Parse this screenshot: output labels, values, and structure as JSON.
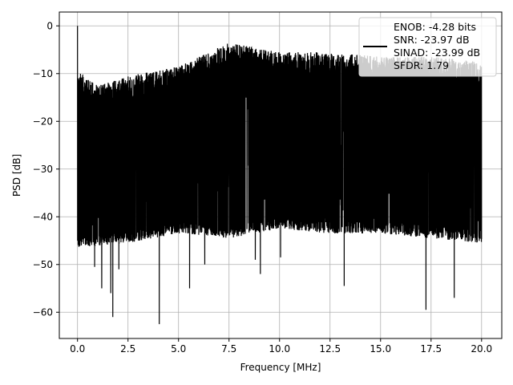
{
  "chart_data": {
    "type": "line",
    "xlabel": "Frequency [MHz]",
    "ylabel": "PSD [dB]",
    "xlim": [
      -0.9,
      21.0
    ],
    "ylim": [
      -65.5,
      2.9
    ],
    "xticks": [
      0.0,
      2.5,
      5.0,
      7.5,
      10.0,
      12.5,
      15.0,
      17.5,
      20.0
    ],
    "xtick_labels": [
      "0.0",
      "2.5",
      "5.0",
      "7.5",
      "10.0",
      "12.5",
      "15.0",
      "17.5",
      "20.0"
    ],
    "yticks": [
      0,
      -10,
      -20,
      -30,
      -40,
      -50,
      -60
    ],
    "ytick_labels": [
      "0",
      "−10",
      "−20",
      "−30",
      "−40",
      "−50",
      "−60"
    ],
    "grid": true,
    "legend_position": "top-right",
    "legend_entries": [
      "ENOB: -4.28 bits",
      "SNR: -23.97 dB",
      "SINAD: -23.99 dB",
      "SFDR: 1.79"
    ],
    "series": [
      {
        "color": "#000000",
        "x_start": 0.0,
        "x_end": 20.0,
        "peak": {
          "x": 0.0,
          "y": 0.0
        },
        "band_top": [
          {
            "x": 0.0,
            "y": -14
          },
          {
            "x": 1.0,
            "y": -17
          },
          {
            "x": 2.5,
            "y": -15
          },
          {
            "x": 5.0,
            "y": -13
          },
          {
            "x": 7.5,
            "y": -8
          },
          {
            "x": 10.0,
            "y": -10
          },
          {
            "x": 12.5,
            "y": -10
          },
          {
            "x": 15.0,
            "y": -11
          },
          {
            "x": 17.5,
            "y": -11
          },
          {
            "x": 20.0,
            "y": -12
          }
        ],
        "band_bottom": [
          {
            "x": 0.0,
            "y": -44
          },
          {
            "x": 2.5,
            "y": -43
          },
          {
            "x": 5.0,
            "y": -41
          },
          {
            "x": 7.5,
            "y": -42
          },
          {
            "x": 10.0,
            "y": -40
          },
          {
            "x": 12.5,
            "y": -41
          },
          {
            "x": 15.0,
            "y": -41
          },
          {
            "x": 17.5,
            "y": -42
          },
          {
            "x": 20.0,
            "y": -43
          }
        ],
        "dips": [
          {
            "x": 0.45,
            "y": -45
          },
          {
            "x": 0.6,
            "y": -43
          },
          {
            "x": 0.85,
            "y": -50.5
          },
          {
            "x": 1.0,
            "y": -44
          },
          {
            "x": 1.2,
            "y": -55
          },
          {
            "x": 1.65,
            "y": -56
          },
          {
            "x": 1.75,
            "y": -61
          },
          {
            "x": 2.05,
            "y": -51
          },
          {
            "x": 4.05,
            "y": -62.5
          },
          {
            "x": 5.55,
            "y": -55
          },
          {
            "x": 6.3,
            "y": -50
          },
          {
            "x": 7.35,
            "y": -44
          },
          {
            "x": 8.8,
            "y": -49
          },
          {
            "x": 9.05,
            "y": -52
          },
          {
            "x": 10.05,
            "y": -48.5
          },
          {
            "x": 13.2,
            "y": -54.5
          },
          {
            "x": 17.25,
            "y": -59.5
          },
          {
            "x": 18.65,
            "y": -57
          },
          {
            "x": 19.55,
            "y": -45
          }
        ]
      }
    ]
  }
}
